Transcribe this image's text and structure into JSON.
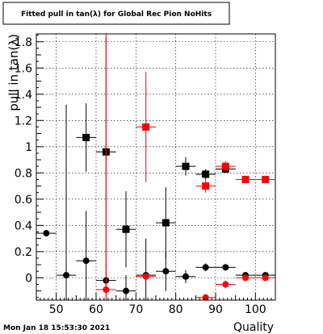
{
  "chart_data": {
    "type": "scatter",
    "title": "Fitted pull in tan(λ) for Global Rec Pion NoHits",
    "xlabel": "Quality",
    "ylabel": "pull in tan(λ)",
    "xlim": [
      45,
      105
    ],
    "ylim": [
      -0.17,
      1.86
    ],
    "xticks": [
      50,
      60,
      70,
      80,
      90,
      100
    ],
    "yticks": [
      0,
      0.2,
      0.4,
      0.6,
      0.8,
      1,
      1.2,
      1.4,
      1.6,
      1.8
    ],
    "grid": true,
    "series": [
      {
        "marker": "square",
        "color": "#000000",
        "points": [
          {
            "x": 57.5,
            "y": 1.07,
            "err": 0.26
          },
          {
            "x": 62.5,
            "y": 0.96,
            "err": 0.87
          },
          {
            "x": 67.5,
            "y": 0.37,
            "err": 0.29
          },
          {
            "x": 77.5,
            "y": 0.42,
            "err": 0.27
          },
          {
            "x": 82.5,
            "y": 0.85,
            "err": 0.07
          },
          {
            "x": 87.5,
            "y": 0.79,
            "err": 0.04
          },
          {
            "x": 92.5,
            "y": 0.83,
            "err": 0.03
          }
        ]
      },
      {
        "marker": "square",
        "color": "#ff0000",
        "points": [
          {
            "x": 72.5,
            "y": 1.15,
            "err": 0.42
          },
          {
            "x": 87.5,
            "y": 0.7,
            "err": 0.05
          },
          {
            "x": 92.5,
            "y": 0.85,
            "err": 0.04
          },
          {
            "x": 97.5,
            "y": 0.75,
            "err": 0.0
          },
          {
            "x": 102.5,
            "y": 0.75,
            "err": 0.0
          }
        ]
      },
      {
        "marker": "circle",
        "color": "#000000",
        "points": [
          {
            "x": 47.5,
            "y": 0.34,
            "err": 0.0
          },
          {
            "x": 52.5,
            "y": 0.02,
            "err": 1.3
          },
          {
            "x": 57.5,
            "y": 0.13,
            "err": 0.38
          },
          {
            "x": 62.5,
            "y": -0.02,
            "err": 0.12
          },
          {
            "x": 67.5,
            "y": -0.1,
            "err": 0.12
          },
          {
            "x": 72.5,
            "y": 0.02,
            "err": 0.28
          },
          {
            "x": 77.5,
            "y": 0.05,
            "err": 0.15
          },
          {
            "x": 82.5,
            "y": 0.01,
            "err": 0.05
          },
          {
            "x": 87.5,
            "y": 0.08,
            "err": 0.03
          },
          {
            "x": 92.5,
            "y": 0.08,
            "err": 0.02
          },
          {
            "x": 97.5,
            "y": 0.02,
            "err": 0.01
          },
          {
            "x": 102.5,
            "y": 0.02,
            "err": 0.0
          }
        ]
      },
      {
        "marker": "circle",
        "color": "#ff0000",
        "points": [
          {
            "x": 62.5,
            "y": -0.09,
            "err": 2.2
          },
          {
            "x": 72.5,
            "y": 0.01,
            "err": 0.0
          },
          {
            "x": 87.5,
            "y": -0.15,
            "err": 0.02
          },
          {
            "x": 92.5,
            "y": -0.05,
            "err": 0.03
          },
          {
            "x": 97.5,
            "y": 0.0,
            "err": 0.0
          },
          {
            "x": 102.5,
            "y": 0.0,
            "err": 0.0
          }
        ]
      }
    ],
    "xerr": 2.5
  },
  "footer": {
    "timestamp": "Mon Jan 18 15:53:30 2021"
  }
}
